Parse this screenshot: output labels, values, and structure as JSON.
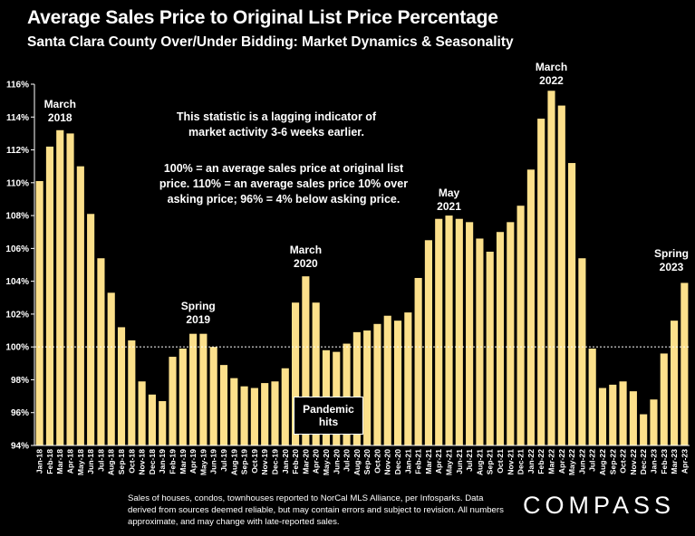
{
  "chart_data": {
    "type": "bar",
    "title": "Average Sales Price to Original List Price Percentage",
    "subtitle": "Santa Clara County Over/Under Bidding: Market Dynamics & Seasonality",
    "ylim": [
      94,
      116
    ],
    "yticks": [
      "94%",
      "96%",
      "98%",
      "100%",
      "102%",
      "104%",
      "106%",
      "108%",
      "110%",
      "112%",
      "114%",
      "116%"
    ],
    "reference_line": 100,
    "bar_color": "#FCE08B",
    "categories": [
      "Jan-18",
      "Feb-18",
      "Mar-18",
      "Apr-18",
      "May-18",
      "Jun-18",
      "Jul-18",
      "Aug-18",
      "Sep-18",
      "Oct-18",
      "Nov-18",
      "Dec-18",
      "Jan-19",
      "Feb-19",
      "Mar-19",
      "Apr-19",
      "May-19",
      "Jun-19",
      "Jul-19",
      "Aug-19",
      "Sep-19",
      "Oct-19",
      "Nov-19",
      "Dec-19",
      "Jan-20",
      "Feb-20",
      "Mar-20",
      "Apr-20",
      "May-20",
      "Jun-20",
      "Jul-20",
      "Aug-20",
      "Sep-20",
      "Oct-20",
      "Nov-20",
      "Dec-20",
      "Jan-21",
      "Feb-21",
      "Mar-21",
      "Apr-21",
      "May-21",
      "Jun-21",
      "Jul-21",
      "Aug-21",
      "Sep-21",
      "Oct-21",
      "Nov-21",
      "Dec-21",
      "Jan-22",
      "Feb-22",
      "Mar-22",
      "Apr-22",
      "May-22",
      "Jun-22",
      "Jul-22",
      "Aug-22",
      "Sep-22",
      "Oct-22",
      "Nov-22",
      "Dec-22",
      "Jan-23",
      "Feb-23",
      "Mar-23",
      "Apr-23"
    ],
    "values": [
      110.1,
      112.2,
      113.2,
      113.0,
      111.0,
      108.1,
      105.4,
      103.3,
      101.2,
      100.4,
      97.9,
      97.1,
      96.7,
      99.4,
      99.9,
      100.8,
      100.8,
      100.0,
      98.9,
      98.1,
      97.6,
      97.5,
      97.8,
      97.9,
      98.7,
      102.7,
      104.3,
      102.7,
      99.8,
      99.7,
      100.2,
      100.9,
      101.0,
      101.4,
      101.9,
      101.6,
      102.1,
      104.2,
      106.5,
      107.8,
      108.0,
      107.8,
      107.6,
      106.6,
      105.8,
      107.0,
      107.6,
      108.6,
      110.8,
      113.9,
      115.6,
      114.7,
      111.2,
      105.4,
      99.9,
      97.5,
      97.7,
      97.9,
      97.3,
      95.9,
      96.8,
      99.6,
      101.6,
      103.9
    ]
  },
  "annotations": {
    "march_2018": [
      "March",
      "2018"
    ],
    "spring_2019": [
      "Spring",
      "2019"
    ],
    "march_2020": [
      "March",
      "2020"
    ],
    "may_2021": [
      "May",
      "2021"
    ],
    "march_2022": [
      "March",
      "2022"
    ],
    "spring_2023": [
      "Spring",
      "2023"
    ],
    "pandemic": [
      "Pandemic",
      "hits"
    ],
    "lagging_note": [
      "This statistic is a lagging indicator of",
      "market activity 3-6 weeks earlier."
    ],
    "definition_note": [
      "100% = an average sales price at original list",
      "price. 110% = an average sales price 10% over",
      "asking price; 96% = 4% below asking price."
    ]
  },
  "footnote": "Sales of houses, condos, townhouses reported to NorCal MLS Alliance, per Infosparks. Data derived from sources deemed reliable, but may contain errors and subject to revision. All numbers approximate, and may change with late-reported sales.",
  "logo": "COMPASS"
}
